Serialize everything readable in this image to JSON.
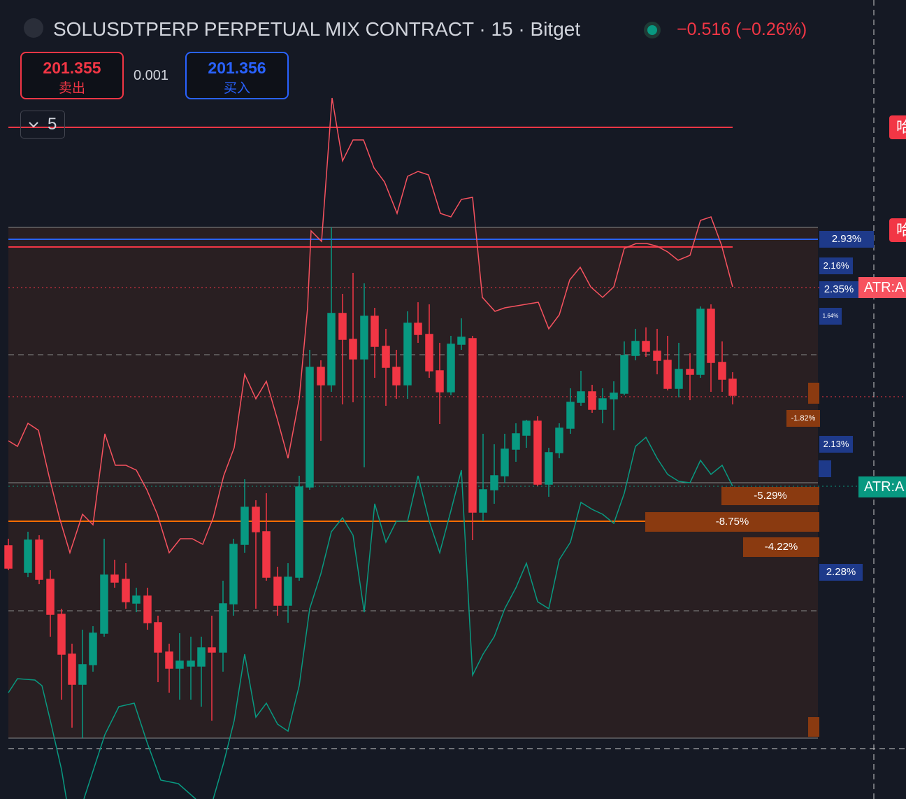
{
  "header": {
    "title": "SOLUSDTPERP PERPETUAL MIX CONTRACT · 15 · Bitget",
    "change": "−0.516 (−0.26%)"
  },
  "order": {
    "sell_price": "201.355",
    "sell_label": "卖出",
    "spread": "0.001",
    "buy_price": "201.356",
    "buy_label": "买入"
  },
  "indicator_toggle": "5",
  "blue_badges": [
    "2.93%",
    "2.16%",
    "2.35%",
    "1.64%",
    "2.13%",
    "2.28%"
  ],
  "orange_badges": [
    "-1.82%",
    "-5.29%",
    "-8.75%",
    "-4.22%"
  ],
  "atr_labels": [
    "ATR:A",
    "ATR:A"
  ],
  "side_labels": [
    "哈",
    "哈"
  ]
}
